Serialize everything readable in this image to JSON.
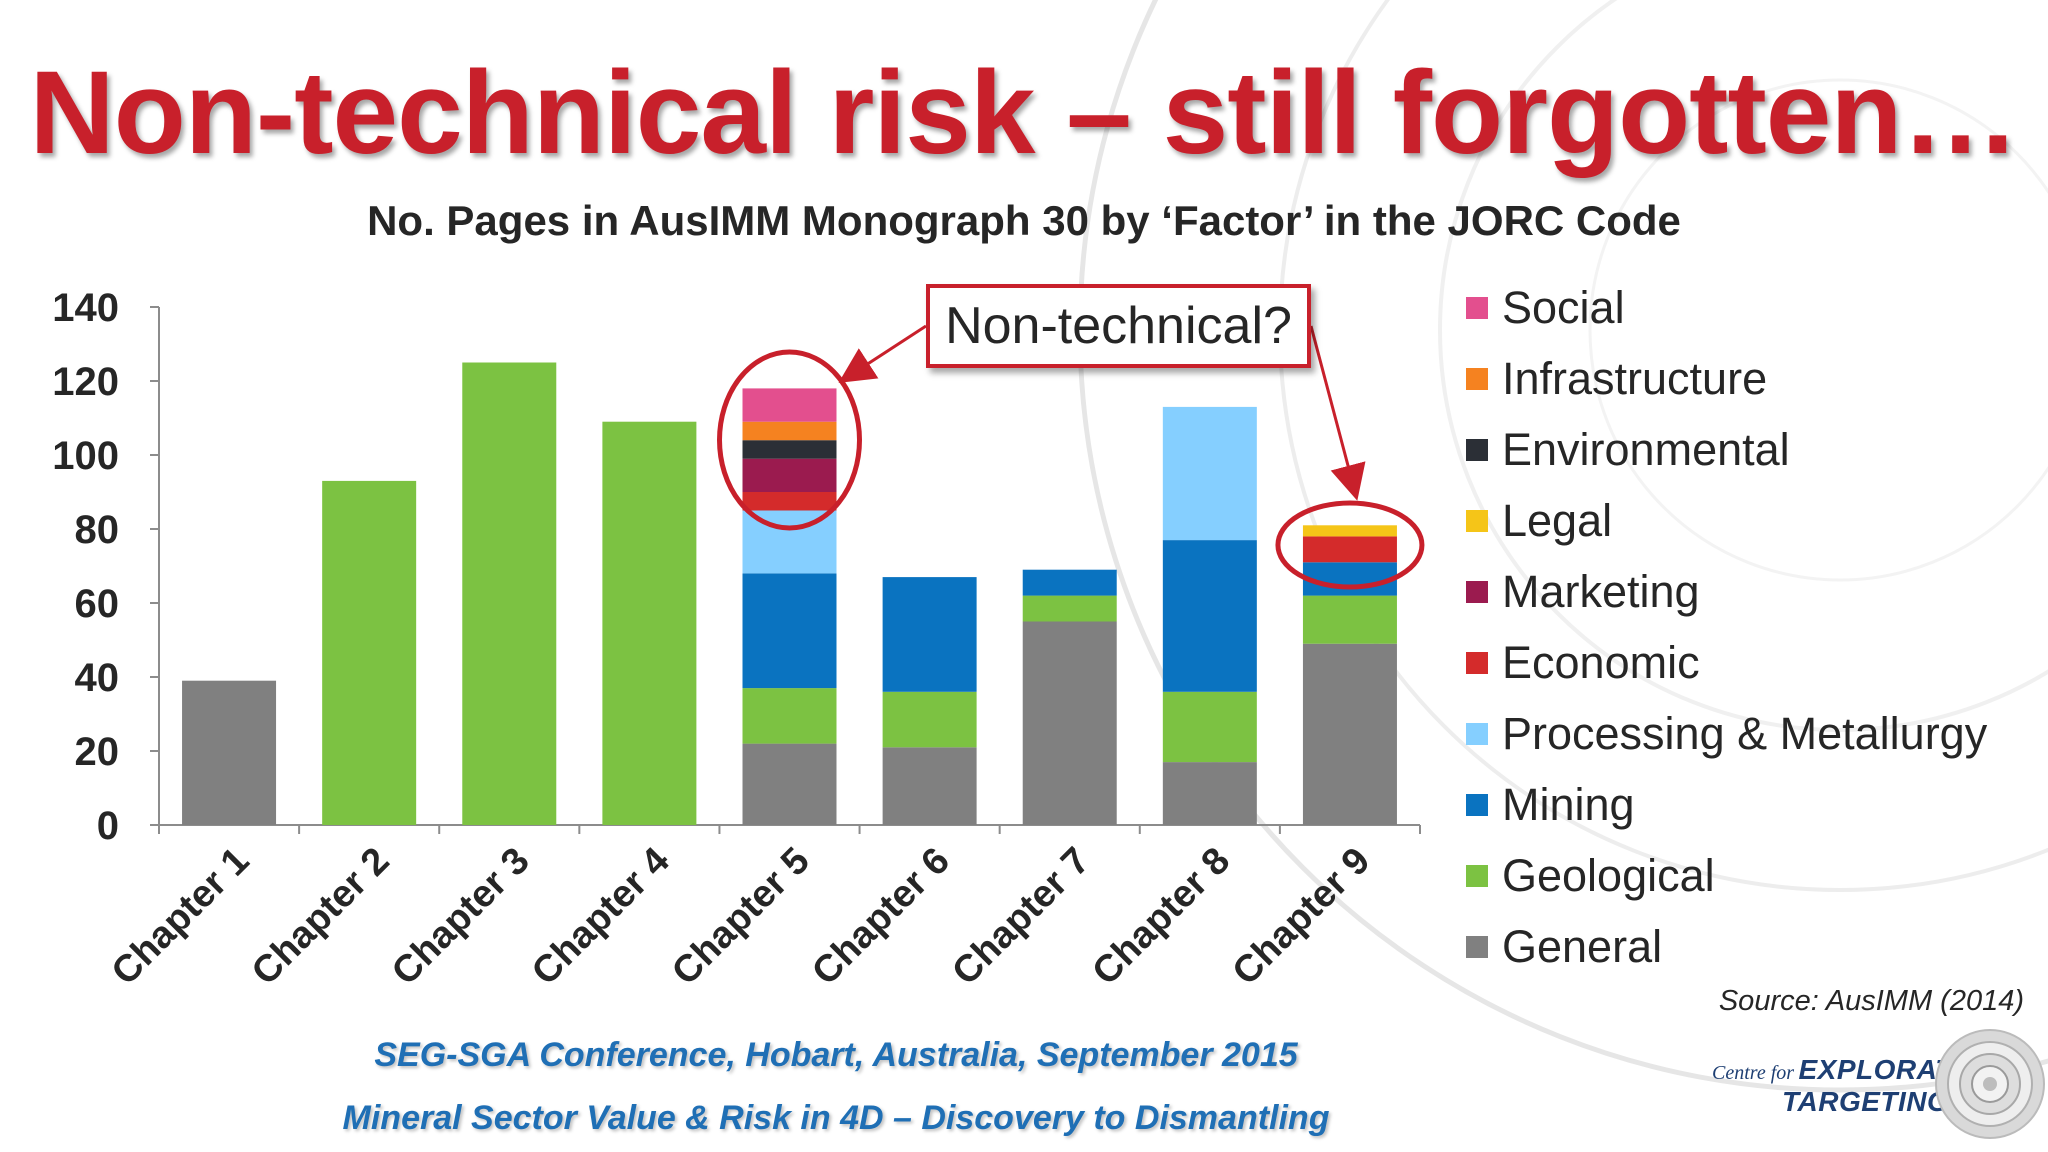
{
  "slide": {
    "title": "Non-technical risk – still forgotten…",
    "callout": "Non-technical?",
    "source": "Source: AusIMM (2014)",
    "footer_line1": "SEG-SGA Conference, Hobart, Australia, September 2015",
    "footer_line2": "Mineral Sector Value & Risk in 4D – Discovery to Dismantling",
    "logo": {
      "line1_small": "Centre for",
      "line1_big": "EXPLORATION",
      "line2": "TARGETING"
    }
  },
  "chart_data": {
    "type": "bar",
    "stacked": true,
    "title": "No. Pages in AusIMM Monograph 30 by ‘Factor’ in the JORC Code",
    "xlabel": "",
    "ylabel": "",
    "ylim": [
      0,
      140
    ],
    "yticks": [
      0,
      20,
      40,
      60,
      80,
      100,
      120,
      140
    ],
    "grid": false,
    "legend_position": "right",
    "categories": [
      "Chapter 1",
      "Chapter 2",
      "Chapter 3",
      "Chapter 4",
      "Chapter 5",
      "Chapter 6",
      "Chapter 7",
      "Chapter 8",
      "Chapter 9"
    ],
    "series": [
      {
        "name": "General",
        "color": "#808080",
        "values": [
          39,
          0,
          0,
          0,
          22,
          21,
          55,
          17,
          49
        ]
      },
      {
        "name": "Geological",
        "color": "#7cc242",
        "values": [
          0,
          93,
          125,
          109,
          15,
          15,
          7,
          19,
          13
        ]
      },
      {
        "name": "Mining",
        "color": "#0a73c0",
        "values": [
          0,
          0,
          0,
          0,
          31,
          31,
          7,
          41,
          9
        ]
      },
      {
        "name": "Processing & Metallurgy",
        "color": "#85cfff",
        "values": [
          0,
          0,
          0,
          0,
          17,
          0,
          0,
          36,
          0
        ]
      },
      {
        "name": "Economic",
        "color": "#d42b2b",
        "values": [
          0,
          0,
          0,
          0,
          5,
          0,
          0,
          0,
          7
        ]
      },
      {
        "name": "Marketing",
        "color": "#9b1b4f",
        "values": [
          0,
          0,
          0,
          0,
          9,
          0,
          0,
          0,
          0
        ]
      },
      {
        "name": "Legal",
        "color": "#f5c518",
        "values": [
          0,
          0,
          0,
          0,
          0,
          0,
          0,
          0,
          3
        ]
      },
      {
        "name": "Environmental",
        "color": "#2b2f36",
        "values": [
          0,
          0,
          0,
          0,
          5,
          0,
          0,
          0,
          0
        ]
      },
      {
        "name": "Infrastructure",
        "color": "#f58220",
        "values": [
          0,
          0,
          0,
          0,
          5,
          0,
          0,
          0,
          0
        ]
      },
      {
        "name": "Social",
        "color": "#e34f8e",
        "values": [
          0,
          0,
          0,
          0,
          9,
          0,
          0,
          0,
          0
        ]
      }
    ]
  }
}
